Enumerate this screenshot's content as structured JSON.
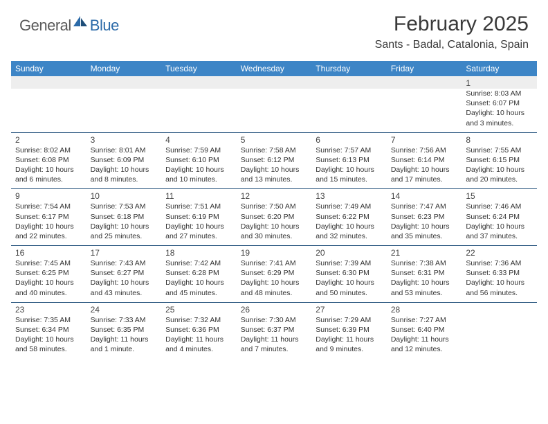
{
  "brand": {
    "general": "General",
    "blue": "Blue"
  },
  "title": "February 2025",
  "location": "Sants - Badal, Catalonia, Spain",
  "colors": {
    "header_bg": "#3d85c6",
    "header_text": "#ffffff",
    "rule": "#1f4e79",
    "logo_gray": "#5a5a5a",
    "logo_blue": "#2b6aa8",
    "body_text": "#333333"
  },
  "day_headers": [
    "Sunday",
    "Monday",
    "Tuesday",
    "Wednesday",
    "Thursday",
    "Friday",
    "Saturday"
  ],
  "weeks": [
    [
      {
        "n": "",
        "s": ""
      },
      {
        "n": "",
        "s": ""
      },
      {
        "n": "",
        "s": ""
      },
      {
        "n": "",
        "s": ""
      },
      {
        "n": "",
        "s": ""
      },
      {
        "n": "",
        "s": ""
      },
      {
        "n": "1",
        "s": "Sunrise: 8:03 AM\nSunset: 6:07 PM\nDaylight: 10 hours and 3 minutes."
      }
    ],
    [
      {
        "n": "2",
        "s": "Sunrise: 8:02 AM\nSunset: 6:08 PM\nDaylight: 10 hours and 6 minutes."
      },
      {
        "n": "3",
        "s": "Sunrise: 8:01 AM\nSunset: 6:09 PM\nDaylight: 10 hours and 8 minutes."
      },
      {
        "n": "4",
        "s": "Sunrise: 7:59 AM\nSunset: 6:10 PM\nDaylight: 10 hours and 10 minutes."
      },
      {
        "n": "5",
        "s": "Sunrise: 7:58 AM\nSunset: 6:12 PM\nDaylight: 10 hours and 13 minutes."
      },
      {
        "n": "6",
        "s": "Sunrise: 7:57 AM\nSunset: 6:13 PM\nDaylight: 10 hours and 15 minutes."
      },
      {
        "n": "7",
        "s": "Sunrise: 7:56 AM\nSunset: 6:14 PM\nDaylight: 10 hours and 17 minutes."
      },
      {
        "n": "8",
        "s": "Sunrise: 7:55 AM\nSunset: 6:15 PM\nDaylight: 10 hours and 20 minutes."
      }
    ],
    [
      {
        "n": "9",
        "s": "Sunrise: 7:54 AM\nSunset: 6:17 PM\nDaylight: 10 hours and 22 minutes."
      },
      {
        "n": "10",
        "s": "Sunrise: 7:53 AM\nSunset: 6:18 PM\nDaylight: 10 hours and 25 minutes."
      },
      {
        "n": "11",
        "s": "Sunrise: 7:51 AM\nSunset: 6:19 PM\nDaylight: 10 hours and 27 minutes."
      },
      {
        "n": "12",
        "s": "Sunrise: 7:50 AM\nSunset: 6:20 PM\nDaylight: 10 hours and 30 minutes."
      },
      {
        "n": "13",
        "s": "Sunrise: 7:49 AM\nSunset: 6:22 PM\nDaylight: 10 hours and 32 minutes."
      },
      {
        "n": "14",
        "s": "Sunrise: 7:47 AM\nSunset: 6:23 PM\nDaylight: 10 hours and 35 minutes."
      },
      {
        "n": "15",
        "s": "Sunrise: 7:46 AM\nSunset: 6:24 PM\nDaylight: 10 hours and 37 minutes."
      }
    ],
    [
      {
        "n": "16",
        "s": "Sunrise: 7:45 AM\nSunset: 6:25 PM\nDaylight: 10 hours and 40 minutes."
      },
      {
        "n": "17",
        "s": "Sunrise: 7:43 AM\nSunset: 6:27 PM\nDaylight: 10 hours and 43 minutes."
      },
      {
        "n": "18",
        "s": "Sunrise: 7:42 AM\nSunset: 6:28 PM\nDaylight: 10 hours and 45 minutes."
      },
      {
        "n": "19",
        "s": "Sunrise: 7:41 AM\nSunset: 6:29 PM\nDaylight: 10 hours and 48 minutes."
      },
      {
        "n": "20",
        "s": "Sunrise: 7:39 AM\nSunset: 6:30 PM\nDaylight: 10 hours and 50 minutes."
      },
      {
        "n": "21",
        "s": "Sunrise: 7:38 AM\nSunset: 6:31 PM\nDaylight: 10 hours and 53 minutes."
      },
      {
        "n": "22",
        "s": "Sunrise: 7:36 AM\nSunset: 6:33 PM\nDaylight: 10 hours and 56 minutes."
      }
    ],
    [
      {
        "n": "23",
        "s": "Sunrise: 7:35 AM\nSunset: 6:34 PM\nDaylight: 10 hours and 58 minutes."
      },
      {
        "n": "24",
        "s": "Sunrise: 7:33 AM\nSunset: 6:35 PM\nDaylight: 11 hours and 1 minute."
      },
      {
        "n": "25",
        "s": "Sunrise: 7:32 AM\nSunset: 6:36 PM\nDaylight: 11 hours and 4 minutes."
      },
      {
        "n": "26",
        "s": "Sunrise: 7:30 AM\nSunset: 6:37 PM\nDaylight: 11 hours and 7 minutes."
      },
      {
        "n": "27",
        "s": "Sunrise: 7:29 AM\nSunset: 6:39 PM\nDaylight: 11 hours and 9 minutes."
      },
      {
        "n": "28",
        "s": "Sunrise: 7:27 AM\nSunset: 6:40 PM\nDaylight: 11 hours and 12 minutes."
      },
      {
        "n": "",
        "s": ""
      }
    ]
  ]
}
